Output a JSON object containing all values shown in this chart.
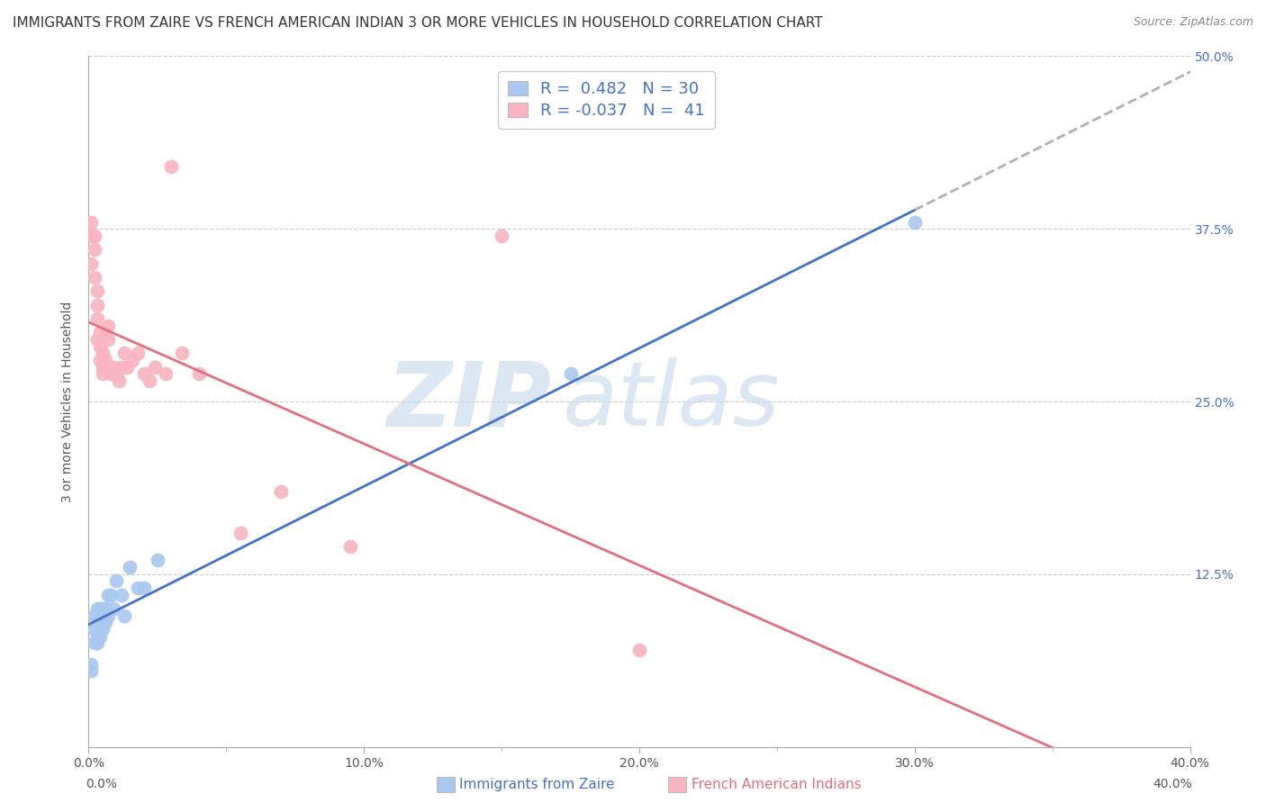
{
  "title": "IMMIGRANTS FROM ZAIRE VS FRENCH AMERICAN INDIAN 3 OR MORE VEHICLES IN HOUSEHOLD CORRELATION CHART",
  "source": "Source: ZipAtlas.com",
  "ylabel": "3 or more Vehicles in Household",
  "legend_label_1": "Immigrants from Zaire",
  "legend_label_2": "French American Indians",
  "R1": 0.482,
  "N1": 30,
  "R2": -0.037,
  "N2": 41,
  "color_blue": "#a8c8f0",
  "color_pink": "#f8b4c0",
  "line_color_blue": "#4472c4",
  "line_color_pink": "#e07080",
  "line_color_dashed": "#b0b0b0",
  "background_color": "#ffffff",
  "xmin": 0.0,
  "xmax": 0.4,
  "ymin": 0.0,
  "ymax": 0.5,
  "yticks": [
    0.0,
    0.125,
    0.25,
    0.375,
    0.5
  ],
  "ytick_labels": [
    "",
    "12.5%",
    "25.0%",
    "37.5%",
    "50.0%"
  ],
  "xticks": [
    0.0,
    0.05,
    0.1,
    0.15,
    0.2,
    0.25,
    0.3,
    0.35,
    0.4
  ],
  "xtick_major": [
    0.0,
    0.1,
    0.2,
    0.3,
    0.4
  ],
  "xtick_major_labels": [
    "0.0%",
    "10.0%",
    "20.0%",
    "30.0%",
    "40.0%"
  ],
  "blue_x": [
    0.001,
    0.001,
    0.002,
    0.002,
    0.002,
    0.003,
    0.003,
    0.003,
    0.003,
    0.004,
    0.004,
    0.004,
    0.005,
    0.005,
    0.005,
    0.006,
    0.006,
    0.007,
    0.007,
    0.008,
    0.009,
    0.01,
    0.012,
    0.013,
    0.015,
    0.018,
    0.02,
    0.025,
    0.175,
    0.3
  ],
  "blue_y": [
    0.06,
    0.055,
    0.075,
    0.085,
    0.095,
    0.075,
    0.08,
    0.09,
    0.1,
    0.08,
    0.09,
    0.1,
    0.085,
    0.09,
    0.1,
    0.09,
    0.1,
    0.095,
    0.11,
    0.11,
    0.1,
    0.12,
    0.11,
    0.095,
    0.13,
    0.115,
    0.115,
    0.135,
    0.27,
    0.38
  ],
  "pink_x": [
    0.001,
    0.001,
    0.001,
    0.002,
    0.002,
    0.002,
    0.003,
    0.003,
    0.003,
    0.003,
    0.004,
    0.004,
    0.004,
    0.005,
    0.005,
    0.005,
    0.006,
    0.006,
    0.007,
    0.007,
    0.008,
    0.009,
    0.01,
    0.011,
    0.012,
    0.013,
    0.014,
    0.016,
    0.018,
    0.02,
    0.022,
    0.024,
    0.028,
    0.03,
    0.034,
    0.04,
    0.055,
    0.07,
    0.095,
    0.15,
    0.2
  ],
  "pink_y": [
    0.35,
    0.37,
    0.38,
    0.34,
    0.36,
    0.37,
    0.295,
    0.31,
    0.32,
    0.33,
    0.28,
    0.29,
    0.3,
    0.27,
    0.275,
    0.285,
    0.28,
    0.3,
    0.295,
    0.305,
    0.27,
    0.275,
    0.27,
    0.265,
    0.275,
    0.285,
    0.275,
    0.28,
    0.285,
    0.27,
    0.265,
    0.275,
    0.27,
    0.42,
    0.285,
    0.27,
    0.155,
    0.185,
    0.145,
    0.37,
    0.07
  ],
  "watermark_part1": "ZIP",
  "watermark_part2": "atlas",
  "title_fontsize": 11,
  "axis_label_fontsize": 10,
  "tick_fontsize": 10,
  "legend_fontsize": 13
}
